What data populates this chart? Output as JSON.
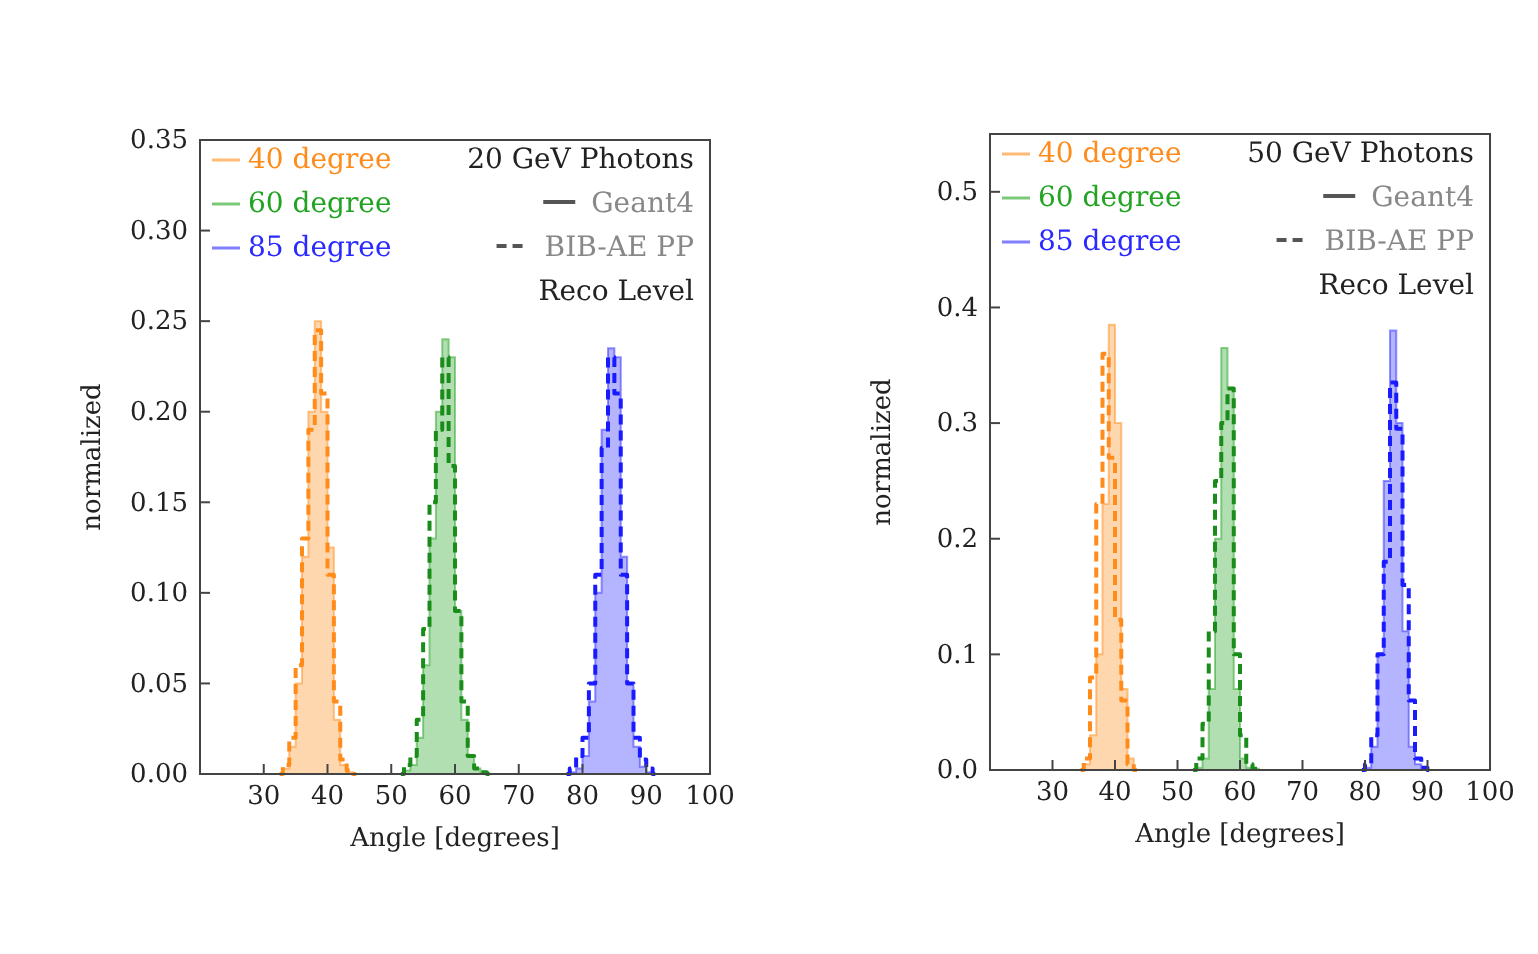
{
  "chart_data": [
    {
      "type": "histogram",
      "legend_title": "20 GeV Photons",
      "annotations": [
        "Geant4",
        "BIB-AE PP",
        "Reco Level"
      ],
      "xlabel": "Angle [degrees]",
      "ylabel": "normalized",
      "xlim": [
        20,
        100
      ],
      "xticks": [
        30,
        40,
        50,
        60,
        70,
        80,
        90,
        100
      ],
      "ylim": [
        0,
        0.35
      ],
      "yticks": [
        {
          "value": 0,
          "label": "0.00"
        },
        {
          "value": 0.05,
          "label": "0.05"
        },
        {
          "value": 0.1,
          "label": "0.10"
        },
        {
          "value": 0.15,
          "label": "0.15"
        },
        {
          "value": 0.2,
          "label": "0.20"
        },
        {
          "value": 0.25,
          "label": "0.25"
        },
        {
          "value": 0.3,
          "label": "0.30"
        },
        {
          "value": 0.35,
          "label": "0.35"
        }
      ],
      "legend": "top left",
      "line_style": "dashed",
      "series": [
        {
          "name": "40 degree",
          "color": "#ff8c1a",
          "bins": [
            33,
            34,
            35,
            36,
            37,
            38,
            39,
            40,
            41,
            42,
            43,
            44
          ],
          "values": [
            0.003,
            0.015,
            0.05,
            0.12,
            0.2,
            0.25,
            0.2,
            0.125,
            0.03,
            0.005,
            0.001
          ]
        },
        {
          "name": "60 degree",
          "color": "#22a322",
          "bins": [
            52,
            53,
            54,
            55,
            56,
            57,
            58,
            59,
            60,
            61,
            62,
            63,
            64,
            65
          ],
          "values": [
            0.002,
            0.005,
            0.02,
            0.06,
            0.13,
            0.2,
            0.24,
            0.23,
            0.09,
            0.03,
            0.01,
            0.003,
            0.001
          ]
        },
        {
          "name": "85 degree",
          "color": "#2a2aff",
          "bins": [
            78,
            79,
            80,
            81,
            82,
            83,
            84,
            85,
            86,
            87,
            88,
            89,
            90,
            91
          ],
          "values": [
            0.001,
            0.003,
            0.01,
            0.04,
            0.1,
            0.19,
            0.235,
            0.23,
            0.12,
            0.05,
            0.015,
            0.004,
            0.001
          ]
        },
        {
          "type": "step",
          "color": "#ff8c1a",
          "x": [
            32.5,
            33.5,
            34.5,
            35.5,
            36.5,
            37.5,
            38.5,
            39.5,
            40.5,
            41.5,
            42.5,
            43.5,
            44.5
          ],
          "values": [
            0,
            0.005,
            0.02,
            0.06,
            0.13,
            0.19,
            0.245,
            0.21,
            0.11,
            0.04,
            0.008,
            0.002,
            0
          ]
        },
        {
          "type": "step",
          "color": "#1a8c1a",
          "x": [
            51.5,
            52.5,
            53.5,
            54.5,
            55.5,
            56.5,
            57.5,
            58.5,
            59.5,
            60.5,
            61.5,
            62.5,
            63.5,
            64.5,
            65.5
          ],
          "values": [
            0,
            0.005,
            0.01,
            0.03,
            0.08,
            0.15,
            0.19,
            0.23,
            0.17,
            0.09,
            0.04,
            0.01,
            0.003,
            0.001,
            0
          ]
        },
        {
          "type": "step",
          "color": "#1a1aff",
          "x": [
            77.5,
            78.5,
            79.5,
            80.5,
            81.5,
            82.5,
            83.5,
            84.5,
            85.5,
            86.5,
            87.5,
            88.5,
            89.5,
            90.5,
            91.5
          ],
          "values": [
            0,
            0.003,
            0.01,
            0.02,
            0.05,
            0.11,
            0.18,
            0.23,
            0.21,
            0.11,
            0.05,
            0.02,
            0.008,
            0.003,
            0
          ]
        }
      ]
    },
    {
      "type": "histogram",
      "legend_title": "50 GeV Photons",
      "annotations": [
        "Geant4",
        "BIB-AE PP",
        "Reco Level"
      ],
      "xlabel": "Angle [degrees]",
      "ylabel": "normalized",
      "xlim": [
        20,
        100
      ],
      "xticks": [
        30,
        40,
        50,
        60,
        70,
        80,
        90,
        100
      ],
      "ylim": [
        0,
        0.55
      ],
      "yticks": [
        {
          "value": 0,
          "label": "0.0"
        },
        {
          "value": 0.1,
          "label": "0.1"
        },
        {
          "value": 0.2,
          "label": "0.2"
        },
        {
          "value": 0.3,
          "label": "0.3"
        },
        {
          "value": 0.4,
          "label": "0.4"
        },
        {
          "value": 0.5,
          "label": "0.5"
        }
      ],
      "legend": "top left",
      "line_style": "dashed",
      "series": [
        {
          "name": "40 degree",
          "color": "#ff8c1a",
          "bins": [
            35,
            36,
            37,
            38,
            39,
            40,
            41,
            42,
            43
          ],
          "values": [
            0.005,
            0.03,
            0.1,
            0.23,
            0.385,
            0.3,
            0.07,
            0.01
          ]
        },
        {
          "name": "60 degree",
          "color": "#22a322",
          "bins": [
            53,
            54,
            55,
            56,
            57,
            58,
            59,
            60,
            61,
            62,
            63
          ],
          "values": [
            0.002,
            0.01,
            0.07,
            0.2,
            0.365,
            0.33,
            0.07,
            0.01,
            0.002,
            0.001
          ]
        },
        {
          "name": "85 degree",
          "color": "#2a2aff",
          "bins": [
            80,
            81,
            82,
            83,
            84,
            85,
            86,
            87,
            88,
            89,
            90
          ],
          "values": [
            0.002,
            0.02,
            0.1,
            0.25,
            0.38,
            0.3,
            0.12,
            0.02,
            0.005,
            0.001
          ]
        },
        {
          "type": "step",
          "color": "#ff8c1a",
          "x": [
            34.5,
            35.5,
            36.5,
            37.5,
            38.5,
            39.5,
            40.5,
            41.5,
            42.5,
            43.5
          ],
          "values": [
            0,
            0.01,
            0.08,
            0.23,
            0.36,
            0.27,
            0.13,
            0.06,
            0.005,
            0
          ]
        },
        {
          "type": "step",
          "color": "#1a8c1a",
          "x": [
            52.5,
            53.5,
            54.5,
            55.5,
            56.5,
            57.5,
            58.5,
            59.5,
            60.5,
            61.5,
            62.5,
            63.5
          ],
          "values": [
            0,
            0.01,
            0.04,
            0.12,
            0.25,
            0.3,
            0.33,
            0.1,
            0.03,
            0.005,
            0.001,
            0
          ]
        },
        {
          "type": "step",
          "color": "#1a1aff",
          "x": [
            79.5,
            80.5,
            81.5,
            82.5,
            83.5,
            84.5,
            85.5,
            86.5,
            87.5,
            88.5,
            89.5,
            90.5
          ],
          "values": [
            0,
            0.005,
            0.03,
            0.1,
            0.18,
            0.335,
            0.295,
            0.16,
            0.06,
            0.01,
            0.002,
            0
          ]
        }
      ]
    }
  ]
}
